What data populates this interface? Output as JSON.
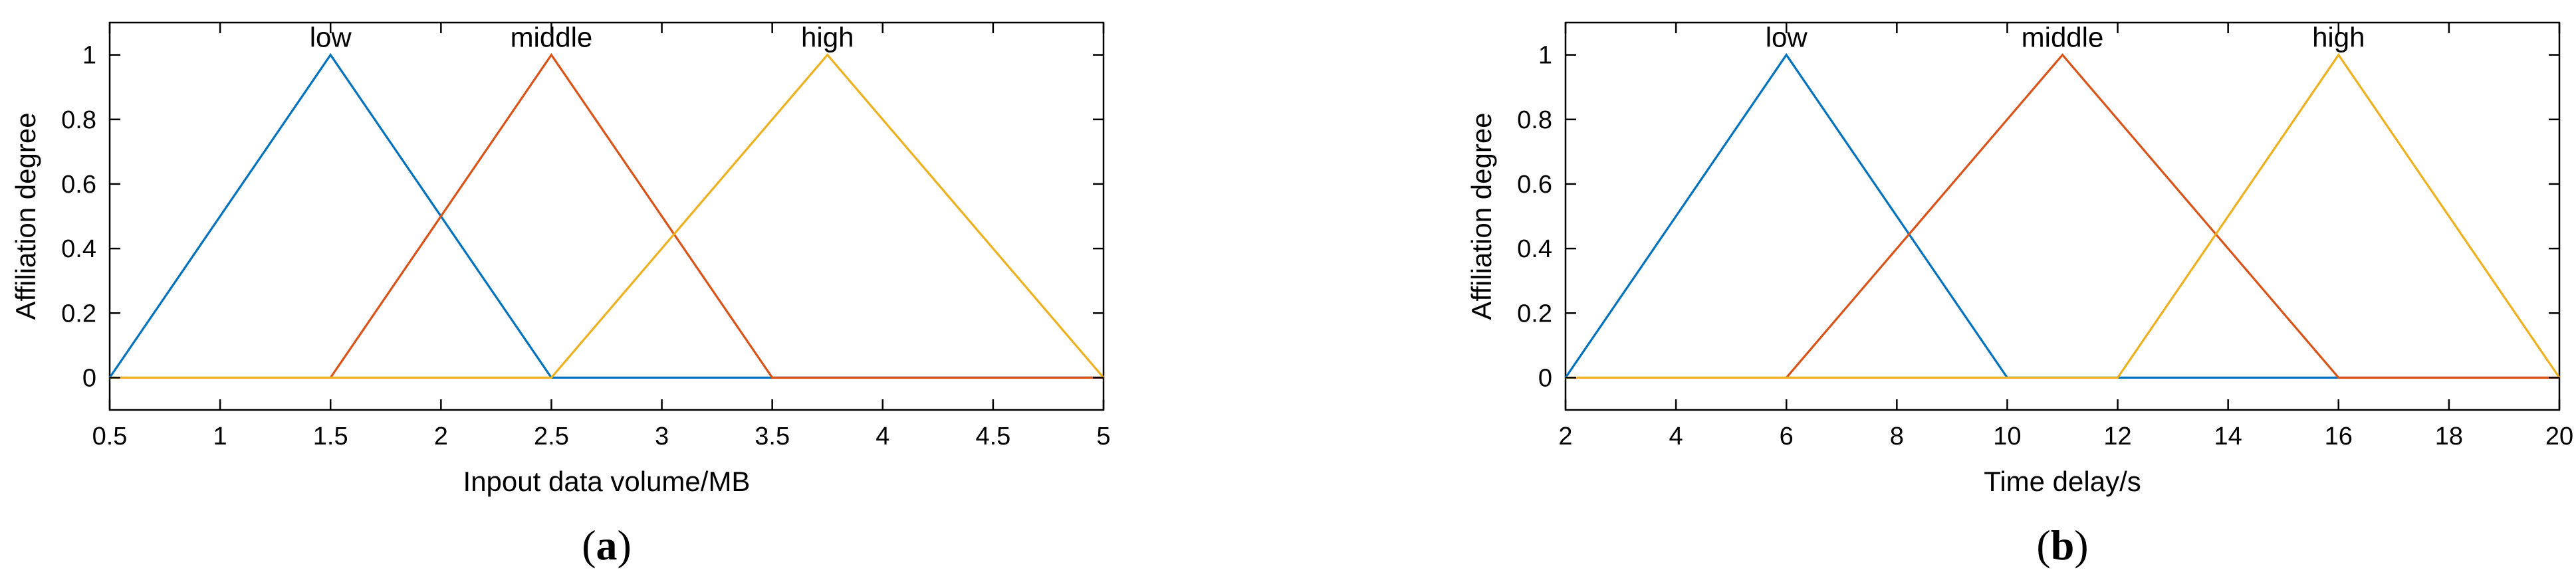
{
  "chart_data": [
    {
      "type": "line",
      "panel_label": "a",
      "xlabel": "Inpout data volume/MB",
      "ylabel": "Affiliation degree",
      "xlim": [
        0.5,
        5
      ],
      "ylim": [
        -0.1,
        1.1
      ],
      "xticks": [
        "0.5",
        "1",
        "1.5",
        "2",
        "2.5",
        "3",
        "3.5",
        "4",
        "4.5",
        "5"
      ],
      "yticks": [
        "0",
        "0.2",
        "0.4",
        "0.6",
        "0.8",
        "1"
      ],
      "grid": false,
      "series": [
        {
          "name": "low",
          "color": "#0072BD",
          "x": [
            0.5,
            1.5,
            2.5,
            5
          ],
          "y": [
            0,
            1,
            0,
            0
          ]
        },
        {
          "name": "middle",
          "color": "#D95319",
          "x": [
            1.5,
            2.5,
            3.5,
            5
          ],
          "y": [
            0,
            1,
            0,
            0
          ]
        },
        {
          "name": "high",
          "color": "#EDB120",
          "x": [
            0.5,
            2.5,
            3.75,
            5
          ],
          "y": [
            0,
            0,
            1,
            0
          ]
        }
      ]
    },
    {
      "type": "line",
      "panel_label": "b",
      "xlabel": "Time delay/s",
      "ylabel": "Affiliation degree",
      "xlim": [
        2,
        20
      ],
      "ylim": [
        -0.1,
        1.1
      ],
      "xticks": [
        "2",
        "4",
        "6",
        "8",
        "10",
        "12",
        "14",
        "16",
        "18",
        "20"
      ],
      "yticks": [
        "0",
        "0.2",
        "0.4",
        "0.6",
        "0.8",
        "1"
      ],
      "grid": false,
      "series": [
        {
          "name": "low",
          "color": "#0072BD",
          "x": [
            2,
            6,
            10,
            16
          ],
          "y": [
            0,
            1,
            0,
            0
          ]
        },
        {
          "name": "middle",
          "color": "#D95319",
          "x": [
            6,
            11,
            16,
            20
          ],
          "y": [
            0,
            1,
            0,
            0
          ]
        },
        {
          "name": "high",
          "color": "#EDB120",
          "x": [
            2,
            12,
            16,
            20
          ],
          "y": [
            0,
            0,
            1,
            0
          ]
        }
      ]
    }
  ]
}
